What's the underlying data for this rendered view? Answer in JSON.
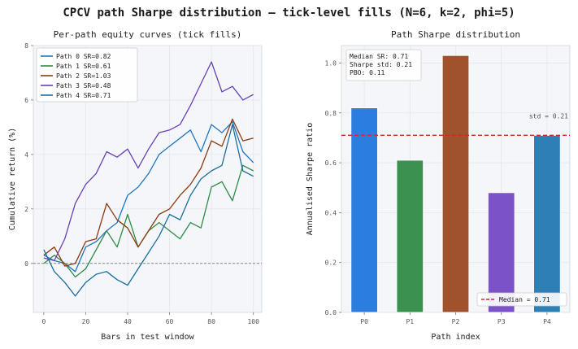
{
  "title": "CPCV path Sharpe distribution — tick-level fills (N=6, k=2, phi=5)",
  "colors": {
    "path0": "#1f77c4",
    "path1": "#2e8b47",
    "path2": "#8b3a0f",
    "path3": "#6a3fb8",
    "path4": "#1a6e9e",
    "bar0": "#2b7de0",
    "bar1": "#3a9150",
    "bar2": "#a0522d",
    "bar3": "#7b52c8",
    "bar4": "#2e7fb5",
    "median_line": "#d62728",
    "zero_line": "#888888",
    "panel_bg": "#f4f6f9"
  },
  "chart_data": [
    {
      "type": "line",
      "title": "Per-path equity curves (tick fills)",
      "xlabel": "Bars in test window",
      "ylabel": "Cumulative return (%)",
      "xlim": [
        -5,
        104
      ],
      "ylim": [
        -1.8,
        8
      ],
      "xticks": [
        0,
        20,
        40,
        60,
        80,
        100
      ],
      "yticks": [
        0,
        2,
        4,
        6,
        8
      ],
      "xtick_labels": [
        "0",
        "20",
        "40",
        "60",
        "80",
        "100"
      ],
      "ytick_labels": [
        "0",
        "2",
        "4",
        "6",
        "8"
      ],
      "hline": 0,
      "grid": true,
      "legend_position": "top-left",
      "series": [
        {
          "name": "Path 0",
          "label": "Path 0  SR=0.82",
          "color_key": "path0",
          "x": [
            0,
            5,
            10,
            15,
            20,
            25,
            30,
            35,
            40,
            45,
            50,
            55,
            60,
            65,
            70,
            75,
            80,
            85,
            90,
            95,
            100
          ],
          "y": [
            0.3,
            0.1,
            0.0,
            -0.3,
            0.6,
            0.8,
            1.2,
            1.5,
            2.5,
            2.8,
            3.3,
            4.0,
            4.3,
            4.6,
            4.9,
            4.1,
            5.1,
            4.8,
            5.2,
            4.1,
            3.7
          ]
        },
        {
          "name": "Path 1",
          "label": "Path 1  SR=0.61",
          "color_key": "path1",
          "x": [
            0,
            5,
            10,
            15,
            20,
            25,
            30,
            35,
            40,
            45,
            50,
            55,
            60,
            65,
            70,
            75,
            80,
            85,
            90,
            95,
            100
          ],
          "y": [
            0.0,
            0.3,
            0.0,
            -0.5,
            -0.2,
            0.5,
            1.2,
            0.6,
            1.8,
            0.6,
            1.2,
            1.5,
            1.2,
            0.9,
            1.5,
            1.3,
            2.8,
            3.0,
            2.3,
            3.6,
            3.4
          ]
        },
        {
          "name": "Path 2",
          "label": "Path 2  SR=1.03",
          "color_key": "path2",
          "x": [
            0,
            5,
            10,
            15,
            20,
            25,
            30,
            35,
            40,
            45,
            50,
            55,
            60,
            65,
            70,
            75,
            80,
            85,
            90,
            95,
            100
          ],
          "y": [
            0.3,
            0.6,
            -0.1,
            0.0,
            0.8,
            0.9,
            2.2,
            1.6,
            1.3,
            0.6,
            1.2,
            1.8,
            2.0,
            2.5,
            2.9,
            3.5,
            4.5,
            4.3,
            5.3,
            4.5,
            4.6
          ]
        },
        {
          "name": "Path 3",
          "label": "Path 3  SR=0.48",
          "color_key": "path3",
          "x": [
            0,
            5,
            10,
            15,
            20,
            25,
            30,
            35,
            40,
            45,
            50,
            55,
            60,
            65,
            70,
            75,
            80,
            85,
            90,
            95,
            100
          ],
          "y": [
            0.2,
            0.1,
            0.9,
            2.2,
            2.9,
            3.3,
            4.1,
            3.9,
            4.2,
            3.5,
            4.2,
            4.8,
            4.9,
            5.1,
            5.8,
            6.6,
            7.4,
            6.3,
            6.5,
            6.0,
            6.2
          ]
        },
        {
          "name": "Path 4",
          "label": "Path 4  SR=0.71",
          "color_key": "path4",
          "x": [
            0,
            5,
            10,
            15,
            20,
            25,
            30,
            35,
            40,
            45,
            50,
            55,
            60,
            65,
            70,
            75,
            80,
            85,
            90,
            95,
            100
          ],
          "y": [
            0.5,
            -0.3,
            -0.7,
            -1.2,
            -0.7,
            -0.4,
            -0.3,
            -0.6,
            -0.8,
            -0.2,
            0.4,
            1.0,
            1.8,
            1.6,
            2.5,
            3.1,
            3.4,
            3.6,
            5.1,
            3.4,
            3.2
          ]
        }
      ]
    },
    {
      "type": "bar",
      "title": "Path Sharpe distribution",
      "xlabel": "Path index",
      "ylabel": "Annualised Sharpe ratio",
      "categories": [
        "P0",
        "P1",
        "P2",
        "P3",
        "P4"
      ],
      "values": [
        0.82,
        0.61,
        1.03,
        0.48,
        0.71
      ],
      "bar_color_keys": [
        "bar0",
        "bar1",
        "bar2",
        "bar3",
        "bar4"
      ],
      "ylim": [
        0,
        1.07
      ],
      "yticks": [
        0,
        0.2,
        0.4,
        0.6,
        0.8,
        1.0
      ],
      "ytick_labels": [
        "0.0",
        "0.2",
        "0.4",
        "0.6",
        "0.8",
        "1.0"
      ],
      "median": 0.71,
      "median_label": "Median = 0.71",
      "std_label": "std = 0.21",
      "stats_box": [
        "Median SR: 0.71",
        "Sharpe std: 0.21",
        "PBO: 0.11"
      ],
      "legend_position": "bottom-right",
      "grid": true
    }
  ]
}
